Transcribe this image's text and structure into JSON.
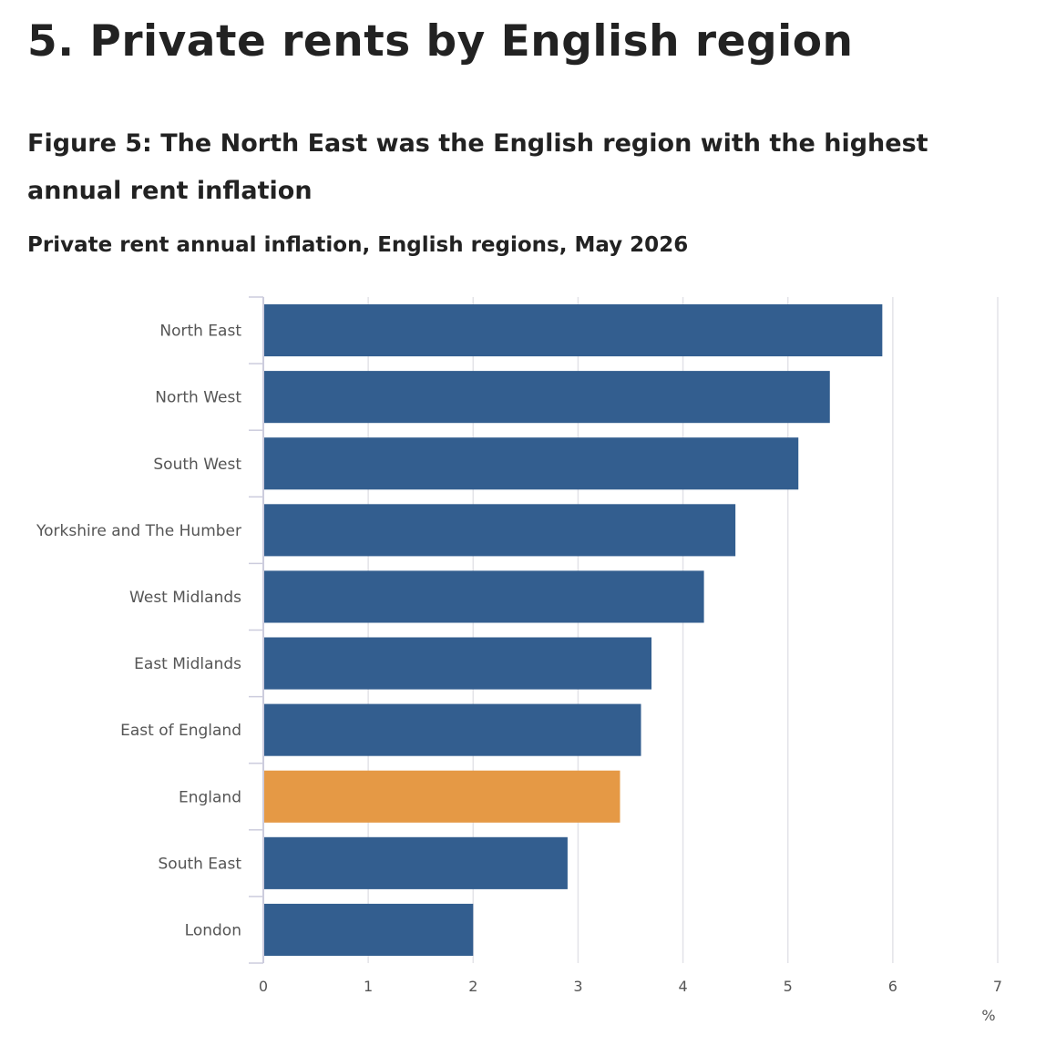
{
  "page": {
    "section_heading": "5.  Private rents by English region",
    "figure_title": "Figure 5: The North East was the English region with the highest annual rent inflation",
    "figure_subtitle": "Private rent annual inflation, English regions, May 2026"
  },
  "colors": {
    "region_bar": "#335E8F",
    "england_bar": "#E59945",
    "gridline": "#E3E3E8",
    "axis_line": "#CCCCDD",
    "label_text": "#555555"
  },
  "chart_data": {
    "type": "bar",
    "orientation": "horizontal",
    "title": "Private rent annual inflation, English regions, May 2026",
    "categories": [
      "North East",
      "North West",
      "South West",
      "Yorkshire and The Humber",
      "West Midlands",
      "East Midlands",
      "East of England",
      "England",
      "South East",
      "London"
    ],
    "values": [
      5.9,
      5.4,
      5.1,
      4.5,
      4.2,
      3.7,
      3.6,
      3.4,
      2.9,
      2.0
    ],
    "highlight_category": "England",
    "xlabel": "%",
    "xlim": [
      0,
      7
    ],
    "x_ticks": [
      "0",
      "1",
      "2",
      "3",
      "4",
      "5",
      "6",
      "7"
    ],
    "grid": true
  }
}
